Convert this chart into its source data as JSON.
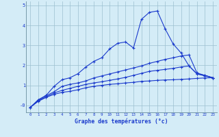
{
  "xlabel": "Graphe des températures (°c)",
  "hours": [
    0,
    1,
    2,
    3,
    4,
    5,
    6,
    7,
    8,
    9,
    10,
    11,
    12,
    13,
    14,
    15,
    16,
    17,
    18,
    19,
    20,
    21,
    22,
    23
  ],
  "line1": [
    -0.1,
    0.2,
    0.4,
    0.55,
    0.65,
    0.7,
    0.78,
    0.88,
    0.95,
    1.0,
    1.05,
    1.08,
    1.12,
    1.15,
    1.2,
    1.22,
    1.25,
    1.27,
    1.28,
    1.3,
    1.32,
    1.35,
    1.37,
    1.38
  ],
  "line2": [
    -0.1,
    0.22,
    0.42,
    0.62,
    0.75,
    0.85,
    0.95,
    1.05,
    1.12,
    1.18,
    1.25,
    1.32,
    1.4,
    1.5,
    1.6,
    1.7,
    1.75,
    1.8,
    1.85,
    1.92,
    1.97,
    1.57,
    1.47,
    1.38
  ],
  "line3": [
    -0.1,
    0.25,
    0.48,
    0.68,
    0.95,
    1.05,
    1.12,
    1.22,
    1.37,
    1.47,
    1.57,
    1.67,
    1.77,
    1.87,
    1.97,
    2.1,
    2.2,
    2.3,
    2.38,
    2.47,
    2.52,
    1.62,
    1.5,
    1.38
  ],
  "line4": [
    -0.1,
    0.28,
    0.5,
    0.95,
    1.28,
    1.38,
    1.58,
    1.92,
    2.2,
    2.38,
    2.82,
    3.1,
    3.17,
    2.87,
    4.3,
    4.65,
    4.72,
    3.82,
    3.07,
    2.62,
    1.97,
    1.58,
    1.5,
    1.38
  ],
  "bg_color": "#d4ecf7",
  "grid_color": "#9bbfcf",
  "line_color": "#1a3acc",
  "ylim": [
    -0.35,
    5.2
  ],
  "xlim": [
    -0.5,
    23.5
  ],
  "yticks": [
    0,
    1,
    2,
    3,
    4,
    5
  ],
  "ytick_labels": [
    "-0",
    "1",
    "2",
    "3",
    "4",
    "5"
  ],
  "marker": "+",
  "markersize": 3.5,
  "linewidth": 0.8
}
